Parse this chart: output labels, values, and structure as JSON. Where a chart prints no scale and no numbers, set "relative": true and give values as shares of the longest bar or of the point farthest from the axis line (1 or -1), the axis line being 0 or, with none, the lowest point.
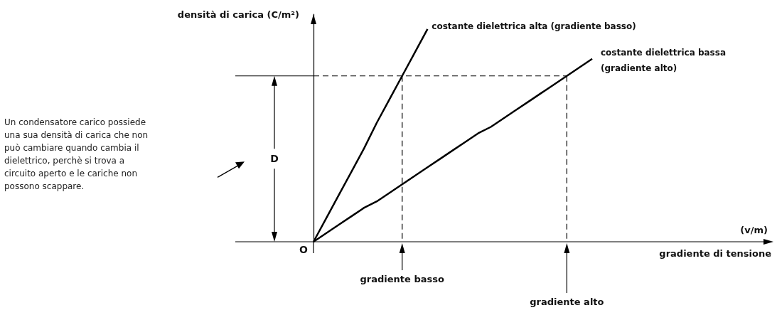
{
  "chart_data": {
    "type": "line",
    "relative": true,
    "ylabel": "densità di carica (C/m²)",
    "categories": [
      null,
      null,
      null,
      null,
      null,
      null,
      null,
      null,
      null,
      null,
      null,
      null,
      null,
      null,
      null,
      null,
      null,
      null,
      null,
      null,
      null,
      null,
      null
    ],
    "series": [
      {
        "name": "costante dielettrica alta (gradiente basso)",
        "color": "#000000",
        "values": [
          0,
          0.11,
          0.22,
          0.33,
          0.44,
          0.56,
          0.67,
          0.78,
          0.89,
          1,
          null,
          null,
          null,
          null,
          null,
          null,
          null,
          null,
          null,
          null,
          null,
          null,
          null
        ]
      },
      {
        "name": "costante dielettrica bassa (gradiente alto)",
        "color": "#000000",
        "values": [
          0,
          0.04,
          0.08,
          0.12,
          0.16,
          0.19,
          0.23,
          0.27,
          0.31,
          0.35,
          0.39,
          0.43,
          0.47,
          0.51,
          0.54,
          0.58,
          0.62,
          0.66,
          0.7,
          0.74,
          0.78,
          0.82,
          0.86
        ]
      }
    ],
    "ref_lines": [
      {
        "axis": "y",
        "value": 0.78,
        "color": "#000000",
        "line_style": "dashed"
      }
    ],
    "annotations": [
      "gradiente basso",
      "gradiente alto",
      "D",
      "O",
      "(v/m)",
      "gradiente di tensione",
      "Un condensatore carico possiede una sua densità di carica che non può cambiare quando cambia il dielettrico, perchè si trova a circuito aperto e le cariche non possono scappare."
    ],
    "grid": false,
    "legend": false,
    "marker": "none",
    "line_style": "solid"
  }
}
